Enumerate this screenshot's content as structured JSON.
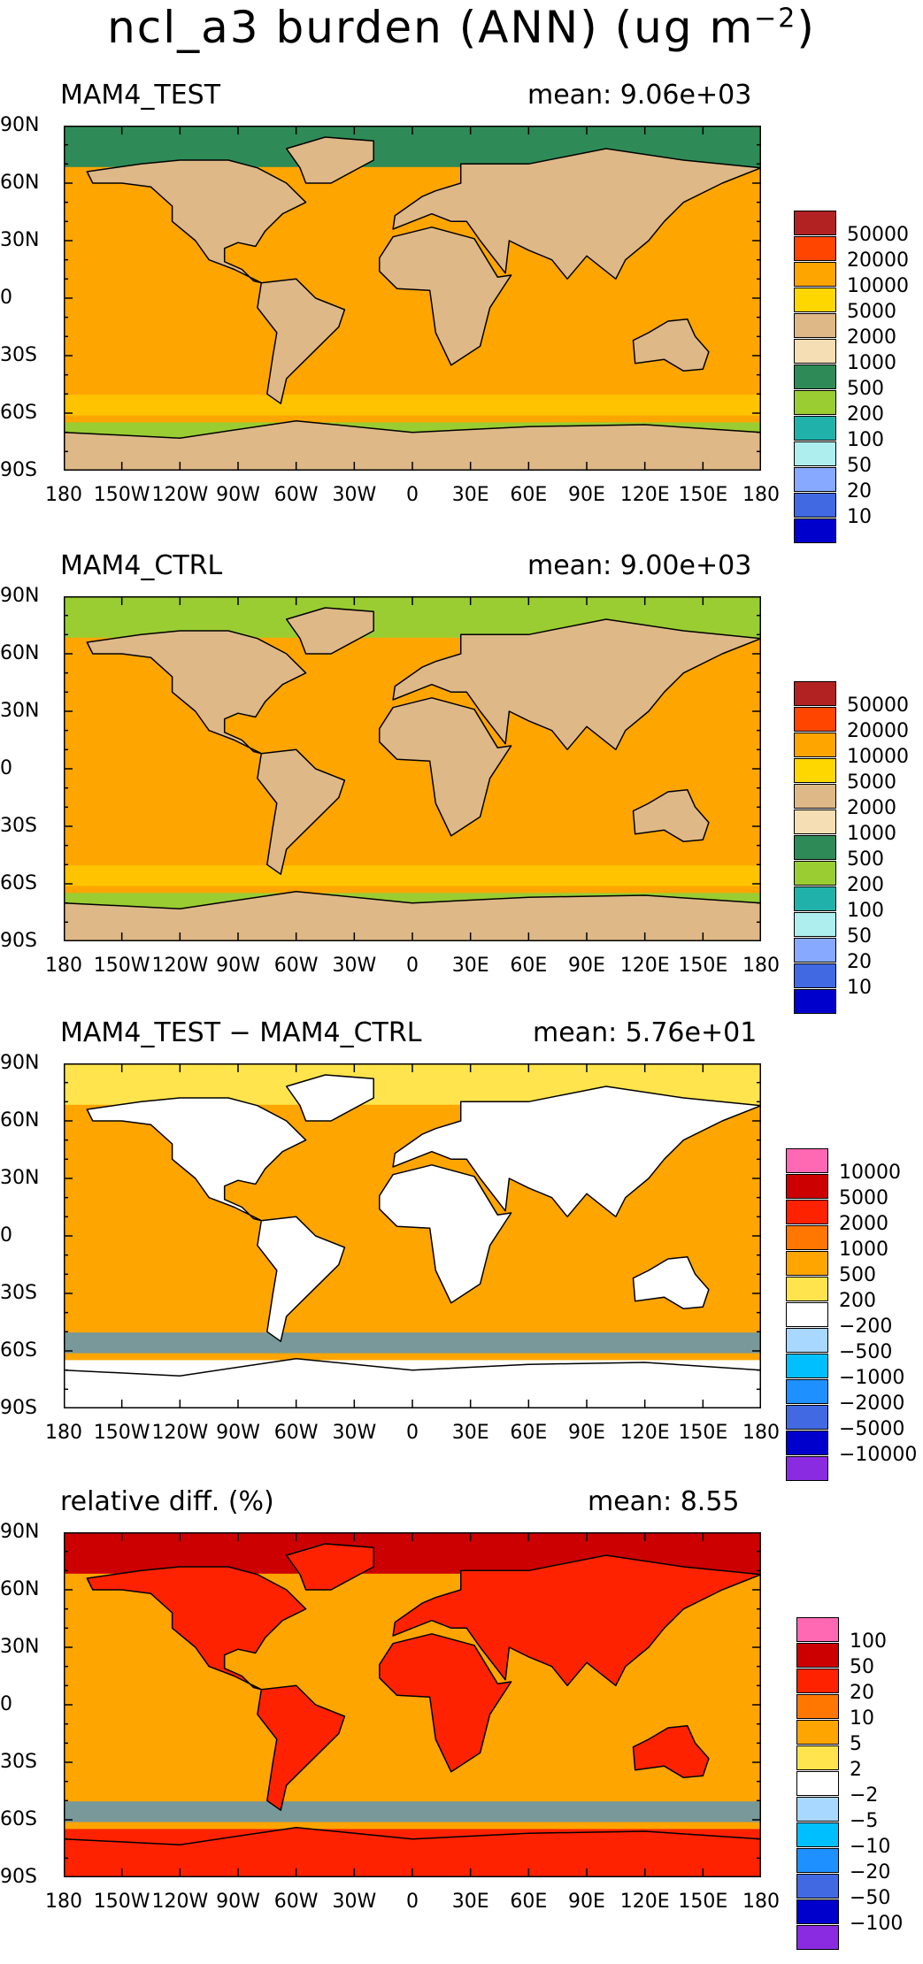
{
  "title": "ncl_a3 burden (ANN) (ug m",
  "title_sup": "−2",
  "title_close": ")",
  "lat_labels": [
    "90N",
    "60N",
    "30N",
    "0",
    "30S",
    "60S",
    "90S"
  ],
  "lon_labels": [
    "180",
    "150W",
    "120W",
    "90W",
    "60W",
    "30W",
    "0",
    "30E",
    "60E",
    "90E",
    "120E",
    "150E",
    "180"
  ],
  "panels": [
    {
      "name": "MAM4_TEST",
      "mean": "mean: 9.06e+03",
      "colorbar": {
        "labels": [
          "50000",
          "20000",
          "10000",
          "5000",
          "2000",
          "1000",
          "500",
          "200",
          "100",
          "50",
          "20",
          "10"
        ],
        "colors": [
          "#b22222",
          "#ff4500",
          "#ffa500",
          "#ffd700",
          "#deb887",
          "#f5deb3",
          "#2e8b57",
          "#9acd32",
          "#20b2aa",
          "#afeeee",
          "#87a9ff",
          "#4169e1",
          "#0000cd"
        ]
      },
      "fields": {
        "ocean": "#ffa500",
        "land": "#deb887",
        "polar_n": "#2e8b57",
        "polar_s": "#9acd32",
        "band": "#ffd700"
      }
    },
    {
      "name": "MAM4_CTRL",
      "mean": "mean: 9.00e+03",
      "colorbar": {
        "labels": [
          "50000",
          "20000",
          "10000",
          "5000",
          "2000",
          "1000",
          "500",
          "200",
          "100",
          "50",
          "20",
          "10"
        ],
        "colors": [
          "#b22222",
          "#ff4500",
          "#ffa500",
          "#ffd700",
          "#deb887",
          "#f5deb3",
          "#2e8b57",
          "#9acd32",
          "#20b2aa",
          "#afeeee",
          "#87a9ff",
          "#4169e1",
          "#0000cd"
        ]
      },
      "fields": {
        "ocean": "#ffa500",
        "land": "#deb887",
        "polar_n": "#9acd32",
        "polar_s": "#9acd32",
        "band": "#ffd700"
      }
    },
    {
      "name": "MAM4_TEST − MAM4_CTRL",
      "mean": "mean: 5.76e+01",
      "colorbar": {
        "labels": [
          "10000",
          "5000",
          "2000",
          "1000",
          "500",
          "200",
          "−200",
          "−500",
          "−1000",
          "−2000",
          "−5000",
          "−10000"
        ],
        "colors": [
          "#ff69b4",
          "#cc0000",
          "#ff2200",
          "#ff7700",
          "#ffa500",
          "#ffe44d",
          "#ffffff",
          "#a8d8ff",
          "#00bfff",
          "#1e90ff",
          "#4169e1",
          "#0000cd",
          "#8a2be2"
        ]
      },
      "fields": {
        "ocean": "#ffa500",
        "land": "#ffffff",
        "polar_n": "#ffe44d",
        "polar_s": "#ffffff",
        "band": "#1e90ff"
      }
    },
    {
      "name": "relative diff. (%)",
      "mean": "mean:  8.55",
      "colorbar": {
        "labels": [
          "100",
          "50",
          "20",
          "10",
          "5",
          "2",
          "−2",
          "−5",
          "−10",
          "−20",
          "−50",
          "−100"
        ],
        "colors": [
          "#ff69b4",
          "#cc0000",
          "#ff2200",
          "#ff7700",
          "#ffa500",
          "#ffe44d",
          "#ffffff",
          "#a8d8ff",
          "#00bfff",
          "#1e90ff",
          "#4169e1",
          "#0000cd",
          "#8a2be2"
        ]
      },
      "fields": {
        "ocean": "#ffa500",
        "land": "#ff2200",
        "polar_n": "#cc0000",
        "polar_s": "#ff2200",
        "band": "#1e90ff"
      }
    }
  ]
}
